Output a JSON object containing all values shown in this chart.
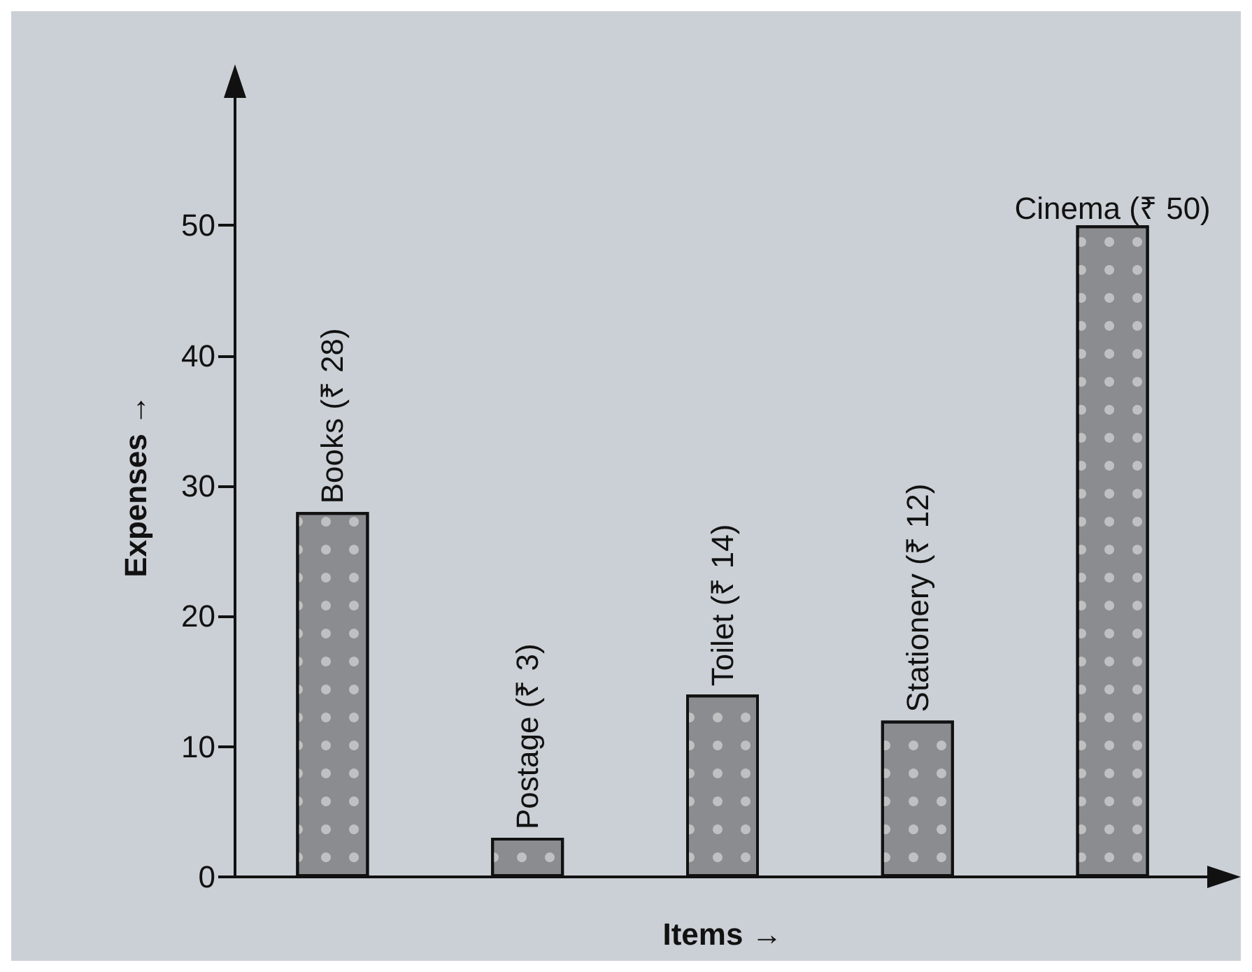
{
  "chart_data": {
    "type": "bar",
    "xlabel": "Items →",
    "ylabel": "Expenses →",
    "categories": [
      null,
      null,
      null,
      null,
      null
    ],
    "values": [
      28,
      3,
      14,
      12,
      50
    ],
    "value_labels": [
      "Books (₹ 28)",
      "Postage (₹ 3)",
      "Toilet (₹ 14)",
      "Stationery (₹ 12)",
      "Cinema (₹ 50)"
    ],
    "color": "#8a8c90",
    "ylim": [
      0,
      60
    ],
    "yticks": [
      0,
      10,
      20,
      30,
      40,
      50
    ],
    "grid": false
  }
}
